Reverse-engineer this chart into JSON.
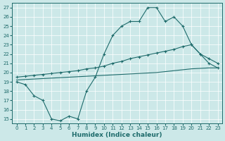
{
  "xlabel": "Humidex (Indice chaleur)",
  "xlim": [
    -0.5,
    23.5
  ],
  "ylim": [
    14.5,
    27.5
  ],
  "yticks": [
    15,
    16,
    17,
    18,
    19,
    20,
    21,
    22,
    23,
    24,
    25,
    26,
    27
  ],
  "xticks": [
    0,
    1,
    2,
    3,
    4,
    5,
    6,
    7,
    8,
    9,
    10,
    11,
    12,
    13,
    14,
    15,
    16,
    17,
    18,
    19,
    20,
    21,
    22,
    23
  ],
  "bg_color": "#cce8e8",
  "line_color": "#1e6b6b",
  "line1_x": [
    0,
    1,
    2,
    3,
    4,
    5,
    6,
    7,
    8,
    9,
    10,
    11,
    12,
    13,
    14,
    15,
    16,
    17,
    18,
    19,
    20,
    21,
    22,
    23
  ],
  "line1_y": [
    19.0,
    18.7,
    17.5,
    17.0,
    15.0,
    14.8,
    15.3,
    15.0,
    18.0,
    19.5,
    22.0,
    24.0,
    25.0,
    25.5,
    25.5,
    27.0,
    27.0,
    25.5,
    26.0,
    25.0,
    23.0,
    22.0,
    21.0,
    20.5
  ],
  "line2_x": [
    0,
    1,
    2,
    3,
    4,
    5,
    6,
    7,
    8,
    9,
    10,
    11,
    12,
    13,
    14,
    15,
    16,
    17,
    18,
    19,
    20,
    21,
    22,
    23
  ],
  "line2_y": [
    19.5,
    19.6,
    19.7,
    19.8,
    19.9,
    20.0,
    20.1,
    20.2,
    20.4,
    20.5,
    20.7,
    21.0,
    21.2,
    21.5,
    21.7,
    21.9,
    22.1,
    22.3,
    22.5,
    22.8,
    23.0,
    22.0,
    21.5,
    21.0
  ],
  "line3_x": [
    0,
    1,
    2,
    3,
    4,
    5,
    6,
    7,
    8,
    9,
    10,
    11,
    12,
    13,
    14,
    15,
    16,
    17,
    18,
    19,
    20,
    21,
    22,
    23
  ],
  "line3_y": [
    19.2,
    19.25,
    19.3,
    19.35,
    19.4,
    19.45,
    19.5,
    19.55,
    19.6,
    19.65,
    19.7,
    19.75,
    19.8,
    19.85,
    19.9,
    19.95,
    20.0,
    20.1,
    20.2,
    20.3,
    20.4,
    20.45,
    20.5,
    20.5
  ]
}
